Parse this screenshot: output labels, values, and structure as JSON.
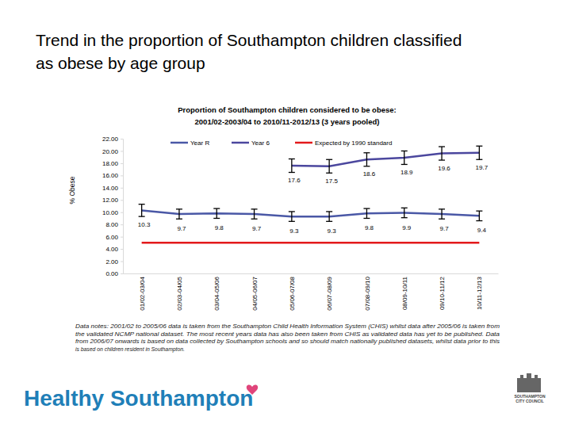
{
  "heading": [
    "Trend in the proportion of Southampton children classified",
    "as obese by age group"
  ],
  "chart_data": {
    "type": "line",
    "title": [
      "Proportion of Southampton children considered to be obese:",
      "2001/02-2003/04 to 2010/11-2012/13 (3 years pooled)"
    ],
    "y_label": "% Obese",
    "categories": [
      "01/02-03/04",
      "02/03-04/05",
      "03/04-05/06",
      "04/05-06/07",
      "05/06-07/08",
      "06/07-08/09",
      "07/08-09/10",
      "08/09-10/11",
      "09/10-11/12",
      "10/11-12/13"
    ],
    "series": [
      {
        "name": "Year R",
        "color": "#4a58a6",
        "values": [
          10.3,
          9.7,
          9.8,
          9.7,
          9.3,
          9.3,
          9.8,
          9.9,
          9.7,
          9.4
        ],
        "errors": [
          1.0,
          0.8,
          0.8,
          0.8,
          0.8,
          0.8,
          0.8,
          0.8,
          0.8,
          0.8
        ]
      },
      {
        "name": "Year 6",
        "color": "#4b479e",
        "values": [
          null,
          null,
          null,
          null,
          17.6,
          17.5,
          18.6,
          18.9,
          19.6,
          19.7
        ],
        "errors": [
          null,
          null,
          null,
          null,
          1.1,
          1.1,
          1.1,
          1.1,
          1.1,
          1.1
        ]
      }
    ],
    "reference_line": {
      "name": "Expected by 1990 standard",
      "value": 5,
      "color": "#e3191b"
    },
    "ylim": [
      0,
      22
    ],
    "yticks": [
      {
        "value": 0,
        "label": "0.00"
      },
      {
        "value": 2,
        "label": "2.00"
      },
      {
        "value": 4,
        "label": "4.00"
      },
      {
        "value": 6,
        "label": "6.00"
      },
      {
        "value": 8,
        "label": "8.00"
      },
      {
        "value": 10,
        "label": "10.00"
      },
      {
        "value": 12,
        "label": "12.00"
      },
      {
        "value": 14,
        "label": "14.00"
      },
      {
        "value": 16,
        "label": "16.00"
      },
      {
        "value": 18,
        "label": "18.00"
      },
      {
        "value": 20,
        "label": "20.00"
      },
      {
        "value": 22,
        "label": "22.00"
      }
    ],
    "grid": false,
    "legend": "top",
    "data_labels": true
  },
  "note": [
    "Data notes: 2001/02 to 2005/06 data is taken from the Southampton Child Health Information System (CHIS) whilst data after 2005/06 is taken from",
    "the validated NCMP national dataset. The most recent years data has also been taken from CHIS as validated data has yet to be published. Data",
    "from 2006/07 onwards is based on data collected by Southampton schools and so should match nationally published datasets, whilst data prior to this",
    "is based on children resident in Southampton."
  ],
  "footer": "Healthy Southampton",
  "logo": [
    "SOUTHAMPTON",
    "CITY COUNCIL"
  ]
}
